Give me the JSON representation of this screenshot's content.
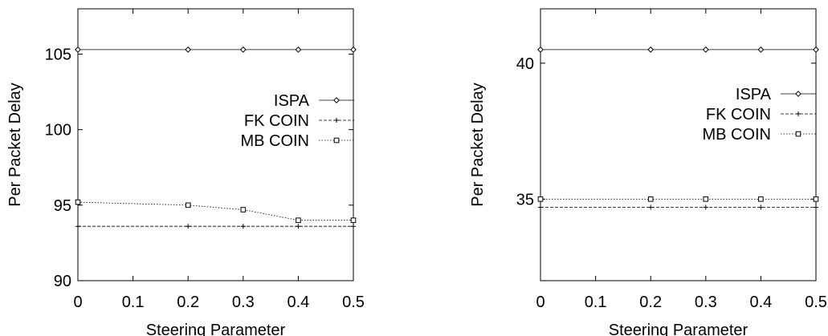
{
  "chart_data": [
    {
      "type": "line",
      "title": "",
      "xlabel": "Steering Parameter",
      "ylabel": "Per Packet Delay",
      "xlim": [
        0,
        0.5
      ],
      "ylim": [
        90,
        108
      ],
      "xticks": [
        0,
        0.1,
        0.2,
        0.3,
        0.4,
        0.5
      ],
      "xtick_labels": [
        "0",
        "0.1",
        "0.2",
        "0.3",
        "0.4",
        "0.5"
      ],
      "yticks": [
        90,
        95,
        100,
        105
      ],
      "ytick_labels": [
        "90",
        "95",
        "100",
        "105"
      ],
      "grid": false,
      "legend_position": "top-right",
      "series": [
        {
          "name": "ISPA",
          "marker": "diamond",
          "dash": "solid",
          "x": [
            0,
            0.2,
            0.3,
            0.4,
            0.5
          ],
          "values": [
            105.3,
            105.3,
            105.3,
            105.3,
            105.3
          ]
        },
        {
          "name": "FK COIN",
          "marker": "plus",
          "dash": "dashed",
          "x": [
            0,
            0.2,
            0.3,
            0.4,
            0.5
          ],
          "values": [
            93.6,
            93.6,
            93.6,
            93.6,
            93.6
          ]
        },
        {
          "name": "MB COIN",
          "marker": "square",
          "dash": "dotted",
          "x": [
            0,
            0.2,
            0.3,
            0.4,
            0.5
          ],
          "values": [
            95.2,
            95.0,
            94.7,
            94.0,
            94.0
          ]
        }
      ]
    },
    {
      "type": "line",
      "title": "",
      "xlabel": "Steering Parameter",
      "ylabel": "Per Packet Delay",
      "xlim": [
        0,
        0.5
      ],
      "ylim": [
        32,
        42
      ],
      "xticks": [
        0,
        0.1,
        0.2,
        0.3,
        0.4,
        0.5
      ],
      "xtick_labels": [
        "0",
        "0.1",
        "0.2",
        "0.3",
        "0.4",
        "0.5"
      ],
      "yticks": [
        35,
        40
      ],
      "ytick_labels": [
        "35",
        "40"
      ],
      "grid": false,
      "legend_position": "top-right",
      "series": [
        {
          "name": "ISPA",
          "marker": "diamond",
          "dash": "solid",
          "x": [
            0,
            0.2,
            0.3,
            0.4,
            0.5
          ],
          "values": [
            40.5,
            40.5,
            40.5,
            40.5,
            40.5
          ]
        },
        {
          "name": "FK COIN",
          "marker": "plus",
          "dash": "dashed",
          "x": [
            0,
            0.2,
            0.3,
            0.4,
            0.5
          ],
          "values": [
            34.7,
            34.7,
            34.7,
            34.7,
            34.7
          ]
        },
        {
          "name": "MB COIN",
          "marker": "square",
          "dash": "dotted",
          "x": [
            0,
            0.2,
            0.3,
            0.4,
            0.5
          ],
          "values": [
            35.0,
            35.0,
            35.0,
            35.0,
            35.0
          ]
        }
      ]
    }
  ]
}
